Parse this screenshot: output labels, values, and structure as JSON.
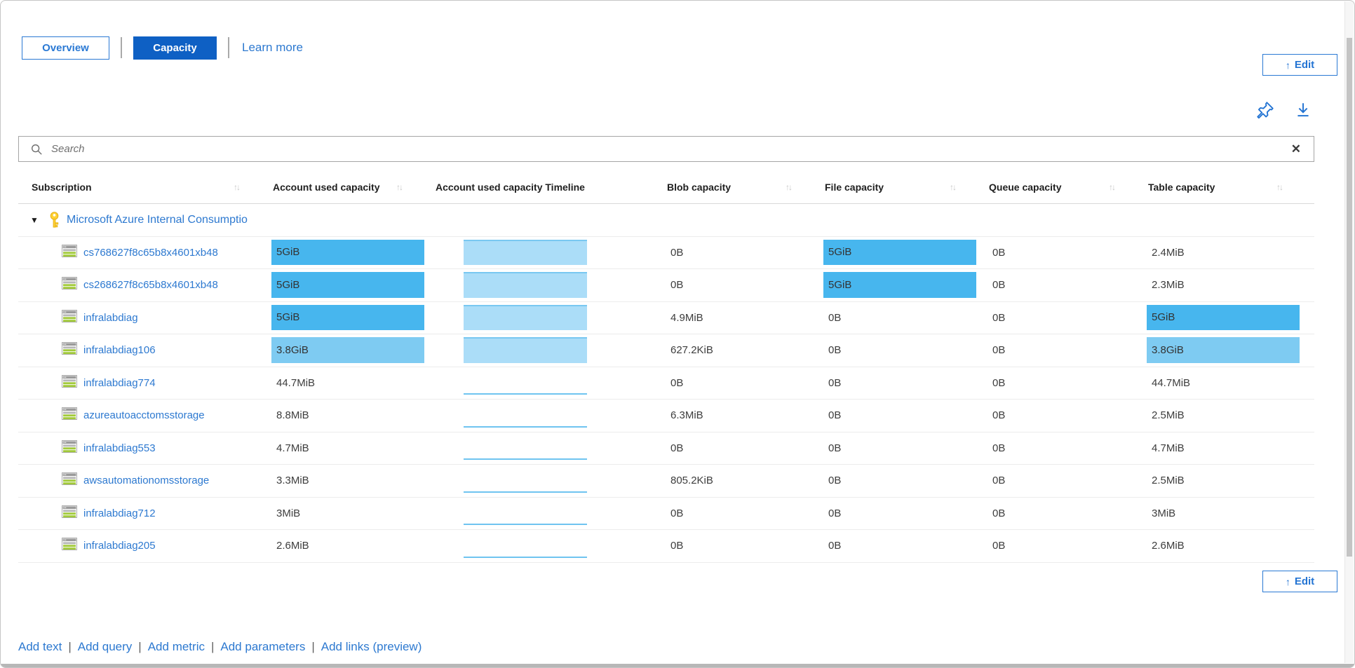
{
  "tabs": [
    {
      "label": "Overview",
      "style": "outline"
    },
    {
      "label": "Capacity",
      "style": "solid"
    },
    {
      "label": "Learn more",
      "style": "link"
    }
  ],
  "toolbar": {
    "edit_label": "Edit",
    "edit_icon": "↑"
  },
  "search": {
    "placeholder": "Search",
    "clear_icon": "✕"
  },
  "table": {
    "sort_icon": "↑↓",
    "columns": [
      {
        "label": "Subscription",
        "sortable": true
      },
      {
        "label": "Account used capacity",
        "sortable": true
      },
      {
        "label": "Account used capacity Timeline",
        "sortable": false
      },
      {
        "label": "Blob capacity",
        "sortable": true
      },
      {
        "label": "File capacity",
        "sortable": true
      },
      {
        "label": "Queue capacity",
        "sortable": true
      },
      {
        "label": "Table capacity",
        "sortable": true
      }
    ],
    "group": {
      "expander": "▼",
      "name": "Microsoft Azure Internal Consumptio"
    },
    "rows": [
      {
        "name": "cs768627f8c65b8x4601xb48",
        "account": {
          "value": "5GiB",
          "bar": "strong"
        },
        "timeline": "area",
        "blob": "0B",
        "file": {
          "value": "5GiB",
          "bar": "strong"
        },
        "queue": "0B",
        "table": {
          "value": "2.4MiB",
          "bar": "none"
        }
      },
      {
        "name": "cs268627f8c65b8x4601xb48",
        "account": {
          "value": "5GiB",
          "bar": "strong"
        },
        "timeline": "area",
        "blob": "0B",
        "file": {
          "value": "5GiB",
          "bar": "strong"
        },
        "queue": "0B",
        "table": {
          "value": "2.3MiB",
          "bar": "none"
        }
      },
      {
        "name": "infralabdiag",
        "account": {
          "value": "5GiB",
          "bar": "strong"
        },
        "timeline": "area",
        "blob": "4.9MiB",
        "file": {
          "value": "0B",
          "bar": "none"
        },
        "queue": "0B",
        "table": {
          "value": "5GiB",
          "bar": "strong"
        }
      },
      {
        "name": "infralabdiag106",
        "account": {
          "value": "3.8GiB",
          "bar": "light"
        },
        "timeline": "area",
        "blob": "627.2KiB",
        "file": {
          "value": "0B",
          "bar": "none"
        },
        "queue": "0B",
        "table": {
          "value": "3.8GiB",
          "bar": "light"
        }
      },
      {
        "name": "infralabdiag774",
        "account": {
          "value": "44.7MiB",
          "bar": "none"
        },
        "timeline": "line",
        "blob": "0B",
        "file": {
          "value": "0B",
          "bar": "none"
        },
        "queue": "0B",
        "table": {
          "value": "44.7MiB",
          "bar": "none"
        }
      },
      {
        "name": "azureautoacctomsstorage",
        "account": {
          "value": "8.8MiB",
          "bar": "none"
        },
        "timeline": "line",
        "blob": "6.3MiB",
        "file": {
          "value": "0B",
          "bar": "none"
        },
        "queue": "0B",
        "table": {
          "value": "2.5MiB",
          "bar": "none"
        }
      },
      {
        "name": "infralabdiag553",
        "account": {
          "value": "4.7MiB",
          "bar": "none"
        },
        "timeline": "line",
        "blob": "0B",
        "file": {
          "value": "0B",
          "bar": "none"
        },
        "queue": "0B",
        "table": {
          "value": "4.7MiB",
          "bar": "none"
        }
      },
      {
        "name": "awsautomationomsstorage",
        "account": {
          "value": "3.3MiB",
          "bar": "none"
        },
        "timeline": "line",
        "blob": "805.2KiB",
        "file": {
          "value": "0B",
          "bar": "none"
        },
        "queue": "0B",
        "table": {
          "value": "2.5MiB",
          "bar": "none"
        }
      },
      {
        "name": "infralabdiag712",
        "account": {
          "value": "3MiB",
          "bar": "none"
        },
        "timeline": "line",
        "blob": "0B",
        "file": {
          "value": "0B",
          "bar": "none"
        },
        "queue": "0B",
        "table": {
          "value": "3MiB",
          "bar": "none"
        }
      },
      {
        "name": "infralabdiag205",
        "account": {
          "value": "2.6MiB",
          "bar": "none"
        },
        "timeline": "line",
        "blob": "0B",
        "file": {
          "value": "0B",
          "bar": "none"
        },
        "queue": "0B",
        "table": {
          "value": "2.6MiB",
          "bar": "none"
        }
      }
    ]
  },
  "footer": {
    "separator": "|",
    "links": [
      "Add text",
      "Add query",
      "Add metric",
      "Add parameters",
      "Add links (preview)"
    ]
  },
  "colors": {
    "accent_blue": "#2374d3",
    "primary_button_fill": "#0e60c4",
    "link_text": "#2d79d0",
    "bar_strong": "#47b6ee",
    "bar_light": "#7ecbf2",
    "timeline_fill": "#abddf8",
    "timeline_edge": "#79c8f1",
    "timeline_line": "#6fc4f0"
  }
}
